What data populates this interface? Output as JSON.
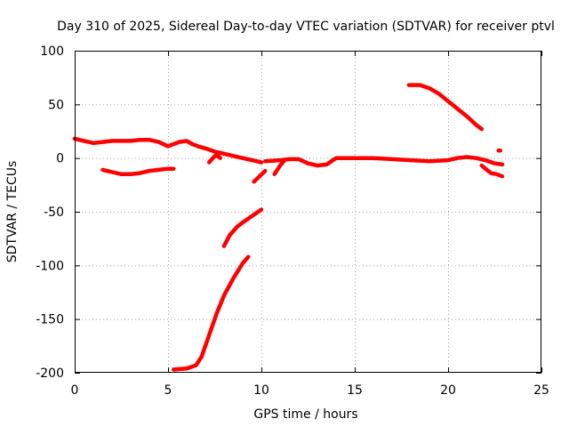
{
  "chart_data": {
    "type": "line",
    "title": "Day 310 of 2025, Sidereal Day-to-day VTEC variation (SDTVAR) for receiver ptvl",
    "xlabel": "GPS time / hours",
    "ylabel": "SDTVAR / TECUs",
    "xlim": [
      0,
      25
    ],
    "ylim": [
      -200,
      100
    ],
    "xticks": [
      0,
      5,
      10,
      15,
      20,
      25
    ],
    "yticks": [
      -200,
      -150,
      -100,
      -50,
      0,
      50,
      100
    ],
    "grid": true,
    "color": "#ff0000",
    "series": [
      {
        "name": "arc-main",
        "x": [
          0,
          0.5,
          1,
          1.5,
          2,
          2.5,
          3,
          3.5,
          4,
          4.5,
          5,
          5.3,
          5.6,
          6,
          6.3,
          6.6,
          7,
          7.5,
          8,
          8.5,
          9,
          9.5,
          10
        ],
        "y": [
          18,
          16,
          14,
          15,
          16,
          16,
          16,
          17,
          17,
          15,
          11,
          13,
          15,
          16,
          13,
          11,
          9,
          6,
          4,
          2,
          0,
          -2,
          -4
        ]
      },
      {
        "name": "arc-low-left",
        "x": [
          1.5,
          2,
          2.5,
          3,
          3.5,
          4,
          4.5,
          5,
          5.3
        ],
        "y": [
          -11,
          -13,
          -15,
          -15,
          -14,
          -12,
          -11,
          -10,
          -10
        ]
      },
      {
        "name": "arc-dip",
        "x": [
          7.2,
          7.4,
          7.6,
          7.8
        ],
        "y": [
          -4,
          0,
          3,
          0
        ]
      },
      {
        "name": "arc-deep",
        "x": [
          5.3,
          6,
          6.5,
          6.8,
          7,
          7.3,
          7.6,
          8,
          8.5,
          9,
          9.3
        ],
        "y": [
          -197,
          -196,
          -193,
          -185,
          -175,
          -160,
          -145,
          -128,
          -112,
          -98,
          -92
        ]
      },
      {
        "name": "arc-recover",
        "x": [
          8,
          8.3,
          8.7,
          9,
          9.5,
          10
        ],
        "y": [
          -82,
          -72,
          -64,
          -60,
          -54,
          -48
        ]
      },
      {
        "name": "arc-short-a",
        "x": [
          9.6,
          9.9,
          10.2
        ],
        "y": [
          -22,
          -17,
          -12
        ]
      },
      {
        "name": "arc-short-b",
        "x": [
          10.7,
          11.0,
          11.2
        ],
        "y": [
          -15,
          -7,
          -3
        ]
      },
      {
        "name": "arc-mid",
        "x": [
          10.2,
          11,
          11.5,
          12,
          12.5,
          13,
          13.5,
          14,
          15,
          16,
          17,
          18,
          19,
          20,
          20.5,
          21,
          21.5,
          22,
          22.5,
          22.9
        ],
        "y": [
          -3,
          -2,
          -1,
          -1,
          -5,
          -7,
          -6,
          0,
          0,
          0,
          -1,
          -2,
          -3,
          -2,
          0,
          1,
          0,
          -2,
          -5,
          -6
        ]
      },
      {
        "name": "arc-high",
        "x": [
          17.9,
          18.5,
          19,
          19.5,
          20,
          20.5,
          21,
          21.5,
          21.8
        ],
        "y": [
          68,
          68,
          65,
          60,
          53,
          46,
          39,
          31,
          27
        ]
      },
      {
        "name": "arc-tail",
        "x": [
          21.8,
          22,
          22.3,
          22.6,
          22.9
        ],
        "y": [
          -7,
          -10,
          -14,
          -15,
          -17
        ]
      },
      {
        "name": "arc-dot",
        "x": [
          22.7,
          22.8
        ],
        "y": [
          7,
          7
        ]
      }
    ]
  }
}
